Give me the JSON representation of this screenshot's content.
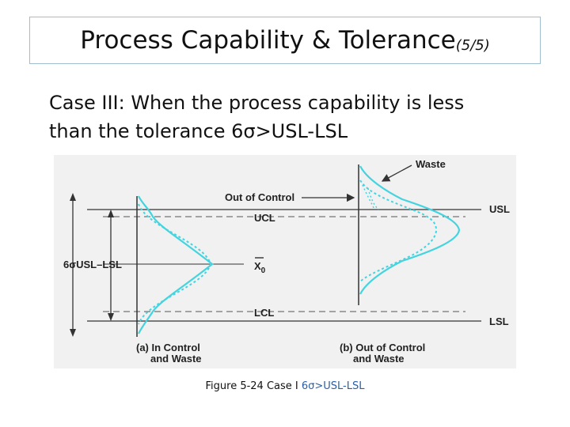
{
  "slide": {
    "title": "Process Capability & Tolerance",
    "title_suffix": "(5/5)",
    "body_line1": "Case III: When the process capability is less",
    "body_line2": "than the tolerance 6σ>USL-LSL",
    "caption_prefix": "Figure 5-24 Case I ",
    "caption_highlight": "6σ>USL-LSL"
  },
  "figure": {
    "label_waste": "Waste",
    "label_out_of_control": "Out of Control",
    "label_ucl": "UCL",
    "label_usl": "USL",
    "label_6sigma": "6σUSL–LSL",
    "label_x0": "X",
    "label_x0_sub": "0",
    "label_lcl": "LCL",
    "label_lsl": "LSL",
    "label_a_line1": "(a) In Control",
    "label_a_line2": "and Waste",
    "label_b_line1": "(b) Out of Control",
    "label_b_line2": "and Waste"
  },
  "colors": {
    "curve": "#44d4e0",
    "line": "#333333",
    "figure_bg": "#f1f1f1",
    "title_border": "#9fbfd0",
    "caption_highlight": "#2b5fa7"
  }
}
